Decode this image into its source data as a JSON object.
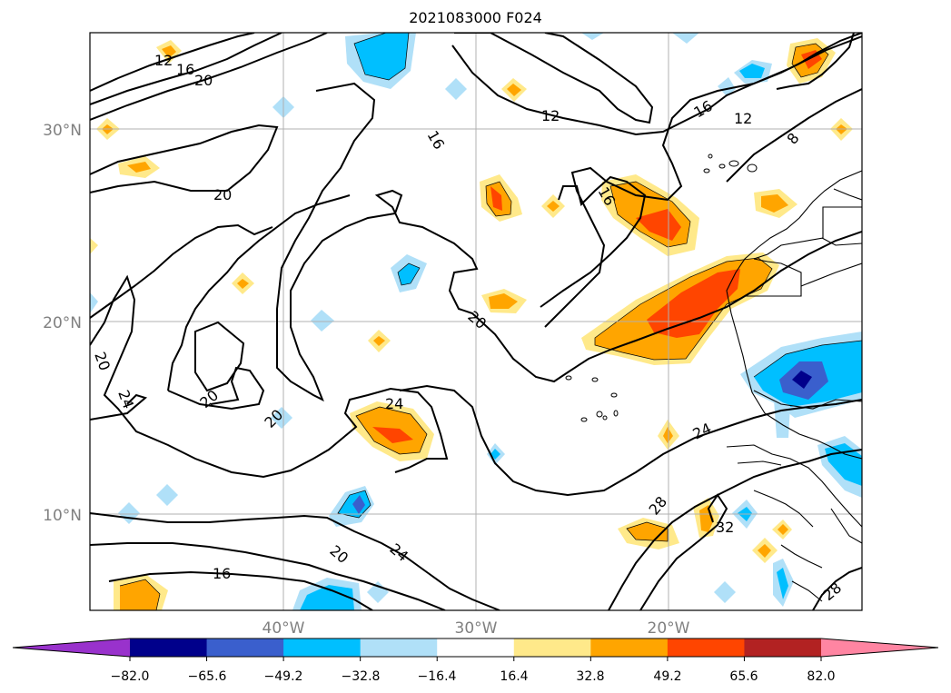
{
  "title": "2021083000 F024",
  "map": {
    "lon_ticks": [
      "40°W",
      "30°W",
      "20°W"
    ],
    "lat_ticks": [
      "30°N",
      "20°N",
      "10°N"
    ],
    "grid": true
  },
  "contour_labels": [
    "12",
    "16",
    "20",
    "16",
    "12",
    "16",
    "12",
    "8",
    "16",
    "20",
    "20",
    "20",
    "24",
    "20",
    "20",
    "24",
    "24",
    "28",
    "32",
    "20",
    "24",
    "16",
    "28"
  ],
  "colorbar": {
    "tick_labels": [
      "−82.0",
      "−65.6",
      "−49.2",
      "−32.8",
      "−16.4",
      "16.4",
      "32.8",
      "49.2",
      "65.6",
      "82.0"
    ],
    "colors": [
      "#9932cc",
      "#00008b",
      "#3a5fcd",
      "#00bfff",
      "#b0e0f8",
      "#ffffff",
      "#ffe98a",
      "#ffa500",
      "#ff4500",
      "#b22222",
      "#ff85a2"
    ],
    "extend": "both"
  }
}
